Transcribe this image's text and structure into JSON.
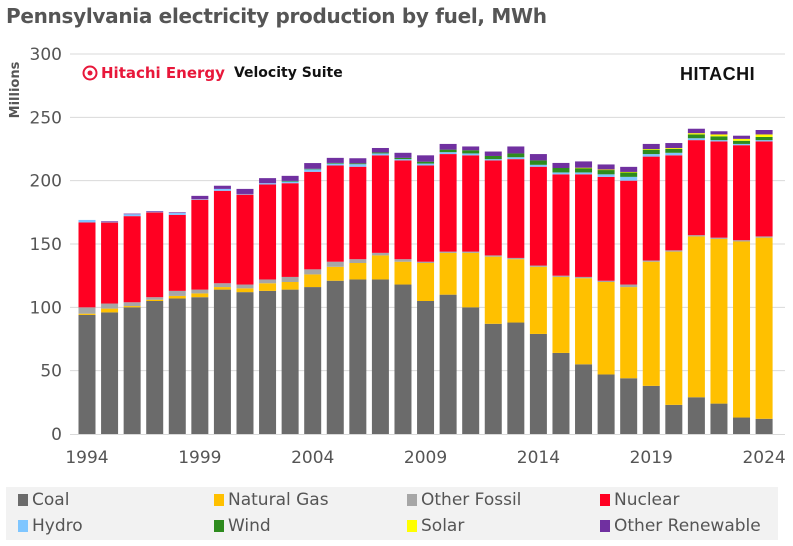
{
  "chart_data": {
    "type": "bar",
    "stacked": true,
    "title": "Pennsylvania electricity production by fuel, MWh",
    "ylabel": "Millions",
    "xlabel": "",
    "ylim": [
      0,
      300
    ],
    "yticks": [
      0,
      50,
      100,
      150,
      200,
      250,
      300
    ],
    "xtick_labels": [
      "1994",
      "1999",
      "2004",
      "2009",
      "2014",
      "2019",
      "2024"
    ],
    "grid": true,
    "legend_position": "bottom",
    "categories": [
      1994,
      1995,
      1996,
      1997,
      1998,
      1999,
      2000,
      2001,
      2002,
      2003,
      2004,
      2005,
      2006,
      2007,
      2008,
      2009,
      2010,
      2011,
      2012,
      2013,
      2014,
      2015,
      2016,
      2017,
      2018,
      2019,
      2020,
      2021,
      2022,
      2023,
      2024
    ],
    "series": [
      {
        "name": "Coal",
        "color": "#6b6b6b",
        "values": [
          94,
          96,
          100,
          105,
          107,
          108,
          114,
          112,
          113,
          114,
          116,
          121,
          122,
          122,
          118,
          105,
          110,
          100,
          87,
          88,
          79,
          64,
          55,
          47,
          44,
          38,
          23,
          29,
          24,
          13,
          12
        ]
      },
      {
        "name": "Natural Gas",
        "color": "#ffc000",
        "values": [
          1,
          3,
          1,
          1,
          2,
          3,
          2,
          3,
          6,
          6,
          10,
          11,
          13,
          19,
          18,
          30,
          33,
          43,
          53,
          50,
          53,
          60,
          68,
          73,
          72,
          98,
          121,
          127,
          130,
          139,
          143
        ]
      },
      {
        "name": "Other Fossil",
        "color": "#a6a6a6",
        "values": [
          5,
          4,
          3,
          2,
          4,
          3,
          3,
          3,
          3,
          4,
          4,
          4,
          3,
          2,
          2,
          1,
          1,
          1,
          1,
          1,
          1,
          1,
          1,
          1,
          2,
          1,
          1,
          1,
          1,
          1,
          1
        ]
      },
      {
        "name": "Nuclear",
        "color": "#ff0022",
        "values": [
          67,
          64,
          68,
          67,
          60,
          71,
          73,
          71,
          75,
          74,
          77,
          76,
          73,
          77,
          78,
          76,
          77,
          76,
          75,
          78,
          78,
          80,
          81,
          82,
          82,
          82,
          75,
          75,
          76,
          75,
          75
        ]
      },
      {
        "name": "Hydro",
        "color": "#7fc6ff",
        "values": [
          2,
          0.5,
          1.5,
          0.5,
          1.5,
          0.5,
          1.5,
          0.5,
          1,
          1.5,
          2,
          1.5,
          2,
          1.5,
          1,
          1.5,
          1.5,
          1.5,
          1,
          1.5,
          1.5,
          1.5,
          1.5,
          2,
          3,
          2,
          2,
          1.5,
          1,
          1,
          1
        ]
      },
      {
        "name": "Wind",
        "color": "#2e8b1e",
        "values": [
          0,
          0,
          0,
          0,
          0,
          0,
          0,
          0,
          0,
          0.3,
          0.4,
          0.5,
          0.7,
          0.8,
          1,
          1.5,
          2,
          2.5,
          2.5,
          3,
          3.5,
          3.5,
          3.5,
          3.5,
          3.5,
          3.5,
          3,
          3,
          3,
          2.5,
          2.5
        ]
      },
      {
        "name": "Solar",
        "color": "#ffff00",
        "values": [
          0,
          0,
          0,
          0,
          0,
          0,
          0,
          0,
          0,
          0,
          0,
          0,
          0,
          0,
          0,
          0,
          0,
          0,
          0,
          0,
          0,
          0,
          0.2,
          0.3,
          0.4,
          0.5,
          0.7,
          1,
          1.5,
          1.5,
          2
        ]
      },
      {
        "name": "Other Renewable",
        "color": "#7030a0",
        "values": [
          0,
          0.5,
          0.5,
          0.5,
          0.5,
          2.5,
          2.5,
          4,
          4,
          4,
          4.5,
          4,
          4,
          3.5,
          4,
          5,
          4.5,
          3,
          3.5,
          5.5,
          5,
          4,
          5,
          4,
          4,
          4,
          4,
          3.5,
          2.5,
          2.5,
          3.5
        ]
      }
    ]
  },
  "branding": {
    "logo_left_brand": "Hitachi Energy",
    "logo_left_product": "Velocity Suite",
    "logo_right": "HITACHI"
  }
}
